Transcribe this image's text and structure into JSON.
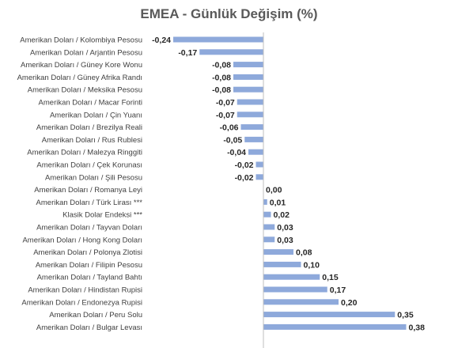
{
  "chart_data": {
    "type": "bar",
    "orientation": "horizontal",
    "title": "EMEA - Günlük Değişim (%)",
    "xlabel": "",
    "ylabel": "",
    "xlim": [
      -0.3,
      0.4
    ],
    "grid": false,
    "legend": "none",
    "bar_color": "#8EA9DB",
    "axis_color": "#BFBFBF",
    "categories": [
      "Amerikan Doları / Kolombiya Pesosu",
      "Amerikan Doları / Arjantin Pesosu",
      "Amerikan Doları / Güney Kore Wonu",
      "Amerikan Doları / Güney Afrika Randı",
      "Amerikan Doları / Meksika Pesosu",
      "Amerikan Doları / Macar Forinti",
      "Amerikan Doları / Çin Yuanı",
      "Amerikan Doları / Brezilya Reali",
      "Amerikan Doları / Rus Rublesi",
      "Amerikan Doları / Malezya Ringgiti",
      "Amerikan Doları / Çek Korunası",
      "Amerikan Doları / Şili Pesosu",
      "Amerikan Doları / Romanya Leyi",
      "Amerikan Doları / Türk Lirası ***",
      "Klasik Dolar Endeksi ***",
      "Amerikan Doları / Tayvan Doları",
      "Amerikan Doları / Hong Kong Doları",
      "Amerikan Doları / Polonya Zlotisi",
      "Amerikan Doları / Filipin Pesosu",
      "Amerikan Doları / Tayland Bahtı",
      "Amerikan Doları / Hindistan Rupisi",
      "Amerikan Doları / Endonezya Rupisi",
      "Amerikan Doları / Peru Solu",
      "Amerikan Doları / Bulgar Levası"
    ],
    "values": [
      -0.24,
      -0.17,
      -0.08,
      -0.08,
      -0.08,
      -0.07,
      -0.07,
      -0.06,
      -0.05,
      -0.04,
      -0.02,
      -0.02,
      0.0,
      0.01,
      0.02,
      0.03,
      0.03,
      0.08,
      0.1,
      0.15,
      0.17,
      0.2,
      0.35,
      0.38
    ],
    "value_labels": [
      "-0,24",
      "-0,17",
      "-0,08",
      "-0,08",
      "-0,08",
      "-0,07",
      "-0,07",
      "-0,06",
      "-0,05",
      "-0,04",
      "-0,02",
      "-0,02",
      "0,00",
      "0,01",
      "0,02",
      "0,03",
      "0,03",
      "0,08",
      "0,10",
      "0,15",
      "0,17",
      "0,20",
      "0,35",
      "0,38"
    ]
  }
}
